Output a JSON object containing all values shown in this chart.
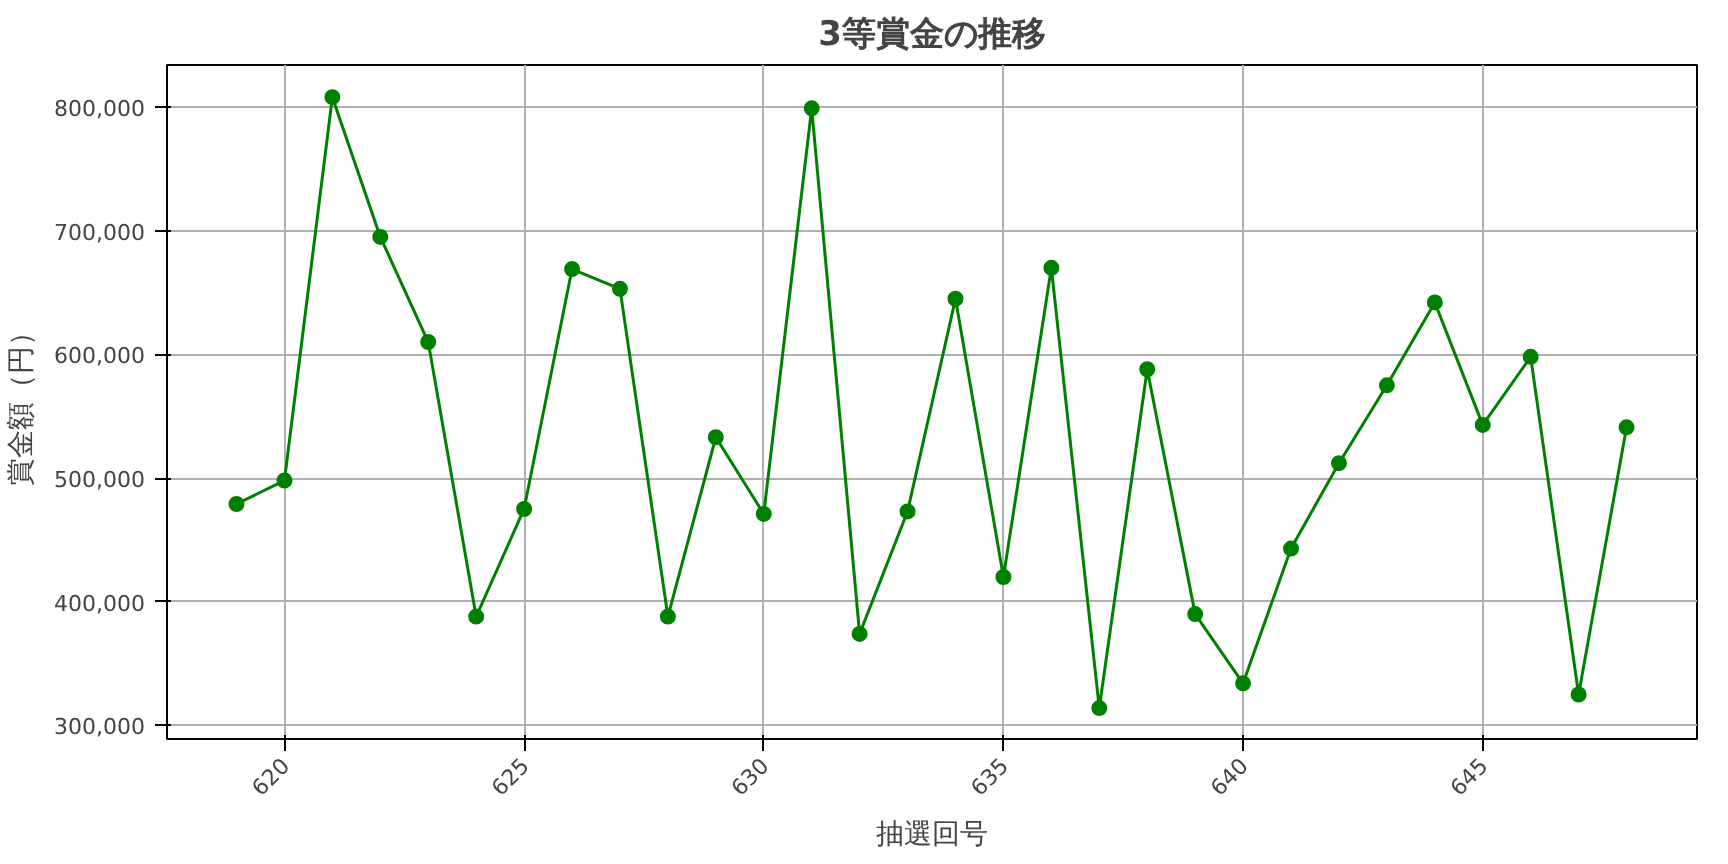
{
  "chart_data": {
    "type": "line",
    "title": "3等賞金の推移",
    "xlabel": "抽選回号",
    "ylabel": "賞金額（円）",
    "x": [
      619,
      620,
      621,
      622,
      623,
      624,
      625,
      626,
      627,
      628,
      629,
      630,
      631,
      632,
      633,
      634,
      635,
      636,
      637,
      638,
      639,
      640,
      641,
      642,
      643,
      644,
      645,
      646,
      647,
      648
    ],
    "series": [
      {
        "color": "#008000",
        "values": [
          479000,
          498000,
          808000,
          695000,
          610000,
          388000,
          475000,
          669000,
          653000,
          388000,
          533000,
          471000,
          799000,
          374000,
          473000,
          645000,
          420000,
          670000,
          314000,
          588000,
          390000,
          334000,
          443000,
          512000,
          575000,
          642000,
          543000,
          598000,
          325000,
          541000
        ]
      }
    ],
    "xlim": [
      617.55,
      649.47
    ],
    "ylim": [
      289000,
      834000
    ],
    "xticks": [
      620,
      625,
      630,
      635,
      640,
      645
    ],
    "yticks": [
      {
        "value": 300000,
        "label": "300,000"
      },
      {
        "value": 400000,
        "label": "400,000"
      },
      {
        "value": 500000,
        "label": "500,000"
      },
      {
        "value": 600000,
        "label": "600,000"
      },
      {
        "value": 700000,
        "label": "700,000"
      },
      {
        "value": 800000,
        "label": "800,000"
      }
    ],
    "grid": true,
    "marker": "circle",
    "line_style": "solid"
  }
}
